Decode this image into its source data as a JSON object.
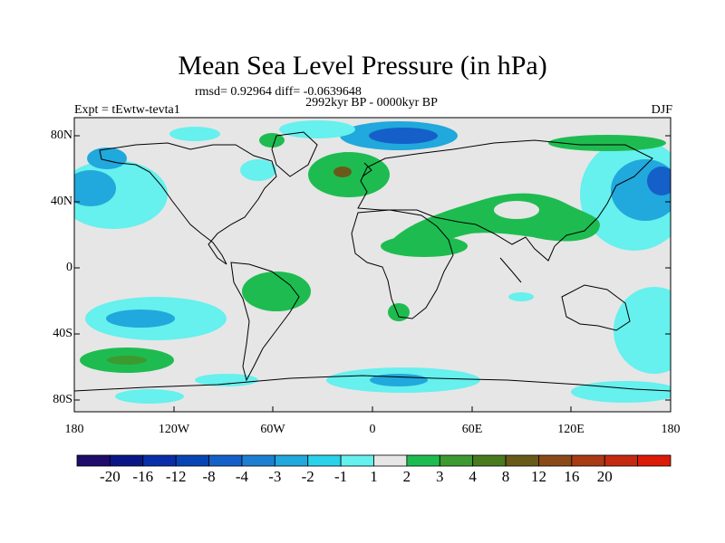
{
  "title": "Mean Sea Level Pressure (in hPa)",
  "stats_line": "rmsd= 0.92964 diff= -0.0639648",
  "period": "2992kyr BP - 0000kyr BP",
  "experiment": "Expt = tEwtw-tevta1",
  "season": "DJF",
  "lat_ticks": [
    "80N",
    "40N",
    "0",
    "40S",
    "80S"
  ],
  "lon_ticks": [
    "180",
    "120W",
    "60W",
    "0",
    "60E",
    "120E",
    "180"
  ],
  "colorbar": {
    "colors": [
      "#1f0c6b",
      "#0a1687",
      "#0a2ea8",
      "#0845b4",
      "#1560c8",
      "#1e7fd2",
      "#21a8dc",
      "#2ad2ea",
      "#66f0ee",
      "#e6e6e6",
      "#1ebc50",
      "#3c9a30",
      "#4a7a1e",
      "#6a5a1a",
      "#8a4a18",
      "#a83a14",
      "#c42a10",
      "#dc1a08"
    ],
    "labels": [
      "-20",
      "-16",
      "-12",
      "-8",
      "-4",
      "-3",
      "-2",
      "-1",
      "1",
      "2",
      "3",
      "4",
      "8",
      "12",
      "16",
      "20"
    ]
  }
}
